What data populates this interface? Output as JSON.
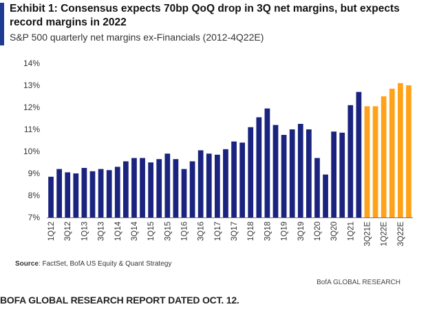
{
  "header": {
    "title": "Exhibit 1: Consensus expects 70bp QoQ drop in 3Q net margins, but expects record margins in 2022",
    "subtitle": "S&P 500 quarterly net margins ex-Financials (2012-4Q22E)"
  },
  "footer": {
    "source_label": "Source",
    "source_text": ": FactSet, BofA US Equity & Quant Strategy",
    "brand": "BofA GLOBAL RESEARCH",
    "caption": "BOFA GLOBAL RESEARCH REPORT DATED OCT. 12."
  },
  "colors": {
    "actual": "#1a237e",
    "estimate": "#ffa21a",
    "accent": "#1f3a93"
  },
  "chart_data": {
    "type": "bar",
    "title": "S&P 500 quarterly net margins ex-Financials (2012-4Q22E)",
    "xlabel": "",
    "ylabel": "",
    "ylim": [
      7,
      14
    ],
    "yticks": [
      "7%",
      "8%",
      "9%",
      "10%",
      "11%",
      "12%",
      "13%",
      "14%"
    ],
    "grid": false,
    "categories": [
      "1Q12",
      "2Q12",
      "3Q12",
      "4Q12",
      "1Q13",
      "2Q13",
      "3Q13",
      "4Q13",
      "1Q14",
      "2Q14",
      "3Q14",
      "4Q14",
      "1Q15",
      "2Q15",
      "3Q15",
      "4Q15",
      "1Q16",
      "2Q16",
      "3Q16",
      "4Q16",
      "1Q17",
      "2Q17",
      "3Q17",
      "4Q17",
      "1Q18",
      "2Q18",
      "3Q18",
      "4Q18",
      "1Q19",
      "2Q19",
      "3Q19",
      "4Q19",
      "1Q20",
      "2Q20",
      "3Q20",
      "4Q20",
      "1Q21",
      "2Q21",
      "3Q21E",
      "4Q21E",
      "1Q22E",
      "2Q22E",
      "3Q22E",
      "4Q22E"
    ],
    "tick_labels": [
      "1Q12",
      "",
      "3Q12",
      "",
      "1Q13",
      "",
      "3Q13",
      "",
      "1Q14",
      "",
      "3Q14",
      "",
      "1Q15",
      "",
      "3Q15",
      "",
      "1Q16",
      "",
      "3Q16",
      "",
      "1Q17",
      "",
      "3Q17",
      "",
      "1Q18",
      "",
      "3Q18",
      "",
      "1Q19",
      "",
      "3Q19",
      "",
      "1Q20",
      "",
      "3Q20",
      "",
      "1Q21",
      "",
      "3Q21E",
      "",
      "1Q22E",
      "",
      "3Q22E",
      ""
    ],
    "series": [
      {
        "name": "Actual",
        "values": [
          8.85,
          9.2,
          9.05,
          9.0,
          9.25,
          9.1,
          9.2,
          9.15,
          9.3,
          9.55,
          9.7,
          9.7,
          9.5,
          9.65,
          9.9,
          9.65,
          9.2,
          9.55,
          10.05,
          9.9,
          9.85,
          10.1,
          10.45,
          10.4,
          11.1,
          11.55,
          11.95,
          11.2,
          10.75,
          11.0,
          11.25,
          11.0,
          9.7,
          8.95,
          10.9,
          10.85,
          12.1,
          12.7,
          null,
          null,
          null,
          null,
          null,
          null
        ]
      },
      {
        "name": "Estimate",
        "values": [
          null,
          null,
          null,
          null,
          null,
          null,
          null,
          null,
          null,
          null,
          null,
          null,
          null,
          null,
          null,
          null,
          null,
          null,
          null,
          null,
          null,
          null,
          null,
          null,
          null,
          null,
          null,
          null,
          null,
          null,
          null,
          null,
          null,
          null,
          null,
          null,
          null,
          null,
          12.05,
          12.05,
          12.5,
          12.85,
          13.1,
          13.0
        ]
      }
    ]
  }
}
